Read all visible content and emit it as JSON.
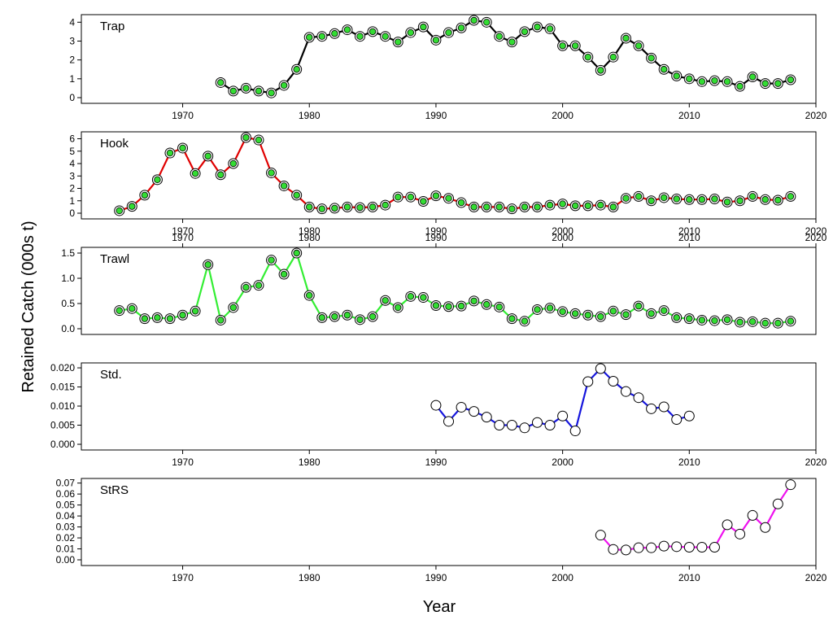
{
  "figure": {
    "ylabel": "Retained Catch (000s t)",
    "xlabel": "Year"
  },
  "chart_data": [
    {
      "type": "line",
      "title": "Trap",
      "line_color": "#000000",
      "marker_fill": "#33dd33",
      "marker_style": "ringed",
      "xlim": [
        1962,
        2020
      ],
      "ylim": [
        0,
        4.1
      ],
      "yticks": [
        0,
        1,
        2,
        3,
        4
      ],
      "xticks": [
        1970,
        1980,
        1990,
        2000,
        2010,
        2020
      ],
      "xtick_position": "bottom",
      "x": [
        1973,
        1974,
        1975,
        1976,
        1977,
        1978,
        1979,
        1980,
        1981,
        1982,
        1983,
        1984,
        1985,
        1986,
        1987,
        1988,
        1989,
        1990,
        1991,
        1992,
        1993,
        1994,
        1995,
        1996,
        1997,
        1998,
        1999,
        2000,
        2001,
        2002,
        2003,
        2004,
        2005,
        2006,
        2007,
        2008,
        2009,
        2010,
        2011,
        2012,
        2013,
        2014,
        2015,
        2016,
        2017,
        2018
      ],
      "y": [
        0.8,
        0.35,
        0.5,
        0.35,
        0.25,
        0.65,
        1.5,
        3.2,
        3.25,
        3.4,
        3.6,
        3.25,
        3.5,
        3.25,
        2.95,
        3.45,
        3.75,
        3.05,
        3.45,
        3.7,
        4.1,
        4.0,
        3.25,
        2.95,
        3.5,
        3.75,
        3.65,
        2.75,
        2.75,
        2.15,
        1.45,
        2.15,
        3.15,
        2.75,
        2.1,
        1.5,
        1.15,
        1.0,
        0.85,
        0.9,
        0.85,
        0.6,
        1.1,
        0.75,
        0.75,
        0.95
      ]
    },
    {
      "type": "line",
      "title": "Hook",
      "line_color": "#e00000",
      "marker_fill": "#33dd33",
      "marker_style": "ringed",
      "xlim": [
        1962,
        2020
      ],
      "ylim": [
        0,
        6.1
      ],
      "yticks": [
        0,
        1,
        2,
        3,
        4,
        5,
        6
      ],
      "xticks": [
        1970,
        1980,
        1990,
        2000,
        2010,
        2020
      ],
      "xtick_position": "bottom",
      "x": [
        1965,
        1966,
        1967,
        1968,
        1969,
        1970,
        1971,
        1972,
        1973,
        1974,
        1975,
        1976,
        1977,
        1978,
        1979,
        1980,
        1981,
        1982,
        1983,
        1984,
        1985,
        1986,
        1987,
        1988,
        1989,
        1990,
        1991,
        1992,
        1993,
        1994,
        1995,
        1996,
        1997,
        1998,
        1999,
        2000,
        2001,
        2002,
        2003,
        2004,
        2005,
        2006,
        2007,
        2008,
        2009,
        2010,
        2011,
        2012,
        2013,
        2014,
        2015,
        2016,
        2017,
        2018
      ],
      "y": [
        0.2,
        0.55,
        1.45,
        2.7,
        4.85,
        5.25,
        3.2,
        4.6,
        3.1,
        4.0,
        6.1,
        5.9,
        3.25,
        2.2,
        1.45,
        0.5,
        0.35,
        0.4,
        0.5,
        0.45,
        0.5,
        0.65,
        1.3,
        1.3,
        0.95,
        1.4,
        1.2,
        0.85,
        0.5,
        0.5,
        0.5,
        0.35,
        0.5,
        0.5,
        0.65,
        0.75,
        0.6,
        0.6,
        0.65,
        0.5,
        1.2,
        1.35,
        1.0,
        1.25,
        1.15,
        1.1,
        1.1,
        1.15,
        0.9,
        1.0,
        1.35,
        1.1,
        1.05,
        1.35
      ]
    },
    {
      "type": "line",
      "title": "Trawl",
      "line_color": "#33ee33",
      "marker_fill": "#33dd33",
      "marker_style": "ringed",
      "xlim": [
        1962,
        2020
      ],
      "ylim": [
        0,
        1.5
      ],
      "yticks": [
        0.0,
        0.5,
        1.0,
        1.5
      ],
      "ytick_labels": [
        "0.0",
        "0.5",
        "1.0",
        "1.5"
      ],
      "xticks": [
        1970,
        1980,
        1990,
        2000,
        2010,
        2020
      ],
      "xtick_position": "top",
      "x": [
        1965,
        1966,
        1967,
        1968,
        1969,
        1970,
        1971,
        1972,
        1973,
        1974,
        1975,
        1976,
        1977,
        1978,
        1979,
        1980,
        1981,
        1982,
        1983,
        1984,
        1985,
        1986,
        1987,
        1988,
        1989,
        1990,
        1991,
        1992,
        1993,
        1994,
        1995,
        1996,
        1997,
        1998,
        1999,
        2000,
        2001,
        2002,
        2003,
        2004,
        2005,
        2006,
        2007,
        2008,
        2009,
        2010,
        2011,
        2012,
        2013,
        2014,
        2015,
        2016,
        2017,
        2018
      ],
      "y": [
        0.36,
        0.4,
        0.2,
        0.22,
        0.2,
        0.27,
        0.35,
        1.27,
        0.17,
        0.42,
        0.82,
        0.86,
        1.36,
        1.08,
        1.5,
        0.66,
        0.22,
        0.24,
        0.27,
        0.18,
        0.24,
        0.56,
        0.42,
        0.64,
        0.62,
        0.46,
        0.44,
        0.45,
        0.55,
        0.48,
        0.43,
        0.2,
        0.15,
        0.38,
        0.41,
        0.34,
        0.3,
        0.27,
        0.24,
        0.35,
        0.28,
        0.45,
        0.3,
        0.36,
        0.22,
        0.2,
        0.17,
        0.16,
        0.18,
        0.13,
        0.14,
        0.11,
        0.11,
        0.15
      ]
    },
    {
      "type": "line",
      "title": "Std.",
      "line_color": "#1515dd",
      "marker_fill": "#ffffff",
      "marker_style": "plain",
      "xlim": [
        1962,
        2020
      ],
      "ylim": [
        0,
        0.0198
      ],
      "yticks": [
        0,
        0.005,
        0.01,
        0.015,
        0.02
      ],
      "ytick_labels": [
        "0.000",
        "0.005",
        "0.010",
        "0.015",
        "0.020"
      ],
      "xticks": [
        1970,
        1980,
        1990,
        2000,
        2010,
        2020
      ],
      "xtick_position": "bottom",
      "x": [
        1990,
        1991,
        1992,
        1993,
        1994,
        1995,
        1996,
        1997,
        1998,
        1999,
        2000,
        2001,
        2002,
        2003,
        2004,
        2005,
        2006,
        2007,
        2008,
        2009,
        2010
      ],
      "y": [
        0.0102,
        0.006,
        0.0097,
        0.0086,
        0.0071,
        0.005,
        0.005,
        0.0043,
        0.0057,
        0.005,
        0.0074,
        0.0035,
        0.0164,
        0.0198,
        0.0165,
        0.0138,
        0.0122,
        0.0093,
        0.0098,
        0.0065,
        0.0074
      ]
    },
    {
      "type": "line",
      "title": "StRS",
      "line_color": "#ee11ee",
      "marker_fill": "#ffffff",
      "marker_style": "plain",
      "xlim": [
        1962,
        2020
      ],
      "ylim": [
        0,
        0.069
      ],
      "yticks": [
        0,
        0.01,
        0.02,
        0.03,
        0.04,
        0.05,
        0.06,
        0.07
      ],
      "ytick_labels": [
        "0.00",
        "0.01",
        "0.02",
        "0.03",
        "0.04",
        "0.05",
        "0.06",
        "0.07"
      ],
      "xticks": [
        1970,
        1980,
        1990,
        2000,
        2010,
        2020
      ],
      "xtick_position": "bottom",
      "x": [
        2003,
        2004,
        2005,
        2006,
        2007,
        2008,
        2009,
        2010,
        2011,
        2012,
        2013,
        2014,
        2015,
        2016,
        2017,
        2018
      ],
      "y": [
        0.0225,
        0.0095,
        0.009,
        0.011,
        0.011,
        0.0125,
        0.012,
        0.0115,
        0.0115,
        0.0115,
        0.032,
        0.0235,
        0.0405,
        0.0295,
        0.051,
        0.0685
      ]
    }
  ]
}
